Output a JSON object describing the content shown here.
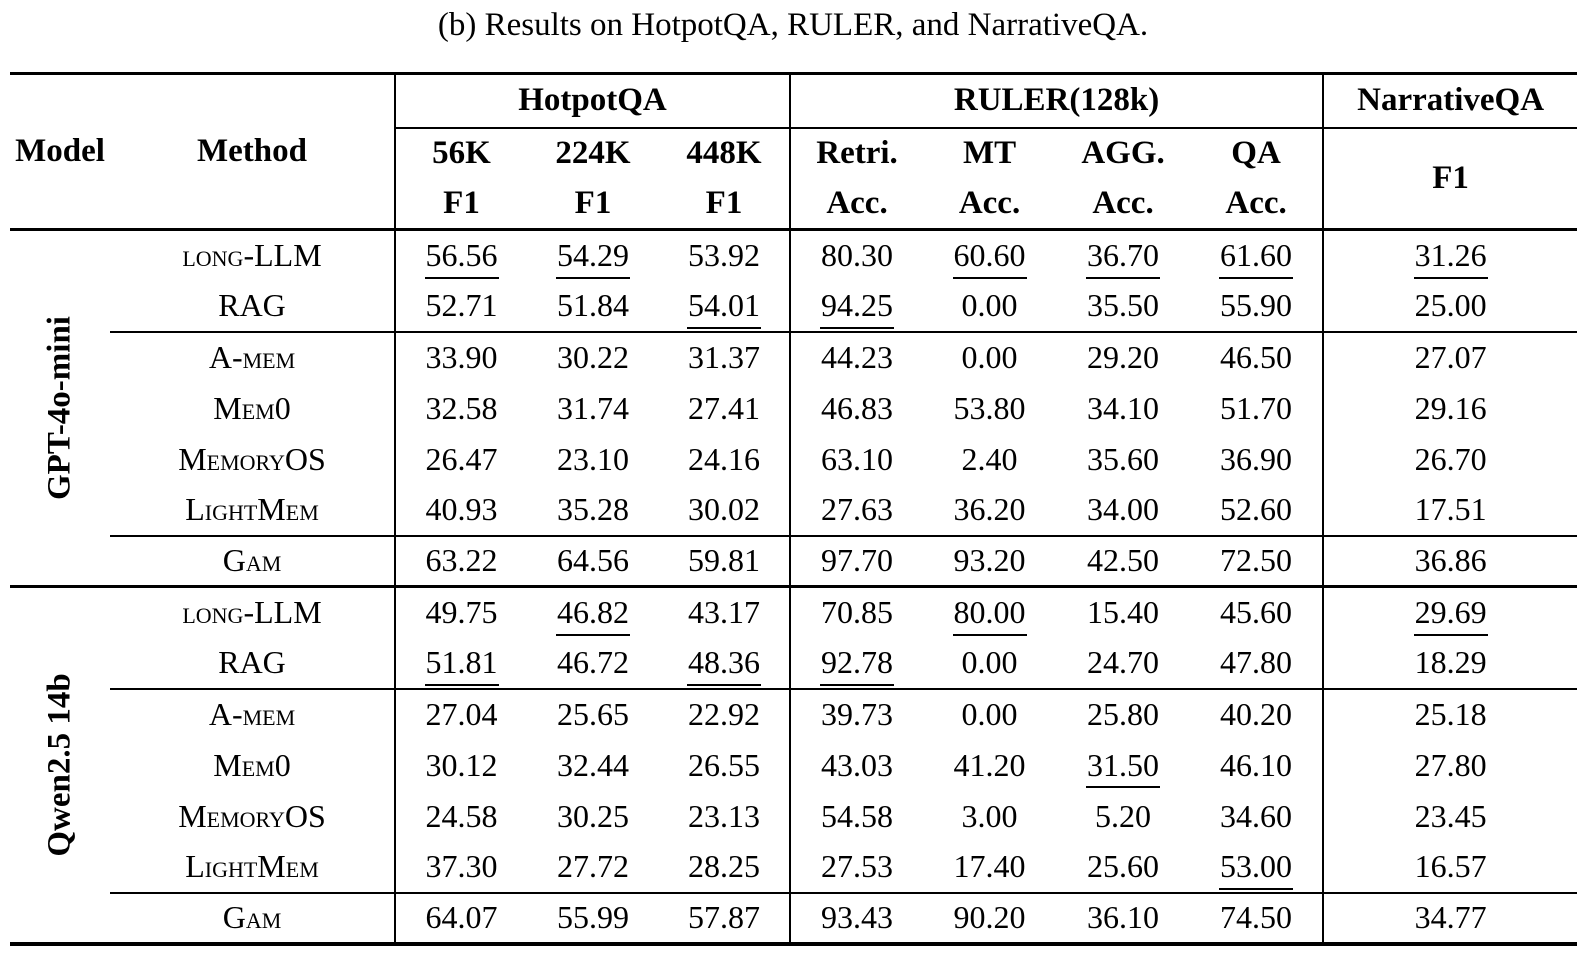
{
  "caption": "(b) Results on HotpotQA, RULER, and NarrativeQA.",
  "header": {
    "model": "Model",
    "method": "Method",
    "groups": [
      {
        "label": "HotpotQA"
      },
      {
        "label": "RULER(128k)"
      },
      {
        "label": "NarrativeQA"
      }
    ],
    "sub_top": [
      "56K",
      "224K",
      "448K",
      "Retri.",
      "MT",
      "AGG.",
      "QA"
    ],
    "sub_bottom": [
      "F1",
      "F1",
      "F1",
      "Acc.",
      "Acc.",
      "Acc.",
      "Acc."
    ],
    "narrative_metric": "F1"
  },
  "sections": [
    {
      "model": "GPT-4o-mini",
      "rows": [
        {
          "method": "long-LLM",
          "values": [
            "56.56",
            "54.29",
            "53.92",
            "80.30",
            "60.60",
            "36.70",
            "61.60",
            "31.26"
          ],
          "underline": [
            0,
            1,
            4,
            5,
            6,
            7
          ],
          "bold": false,
          "rule_above": false
        },
        {
          "method": "RAG",
          "values": [
            "52.71",
            "51.84",
            "54.01",
            "94.25",
            "0.00",
            "35.50",
            "55.90",
            "25.00"
          ],
          "underline": [
            2,
            3
          ],
          "bold": false,
          "rule_above": false
        },
        {
          "method": "A-mem",
          "values": [
            "33.90",
            "30.22",
            "31.37",
            "44.23",
            "0.00",
            "29.20",
            "46.50",
            "27.07"
          ],
          "underline": [],
          "bold": false,
          "rule_above": true
        },
        {
          "method": "Mem0",
          "values": [
            "32.58",
            "31.74",
            "27.41",
            "46.83",
            "53.80",
            "34.10",
            "51.70",
            "29.16"
          ],
          "underline": [],
          "bold": false,
          "rule_above": false
        },
        {
          "method": "MemoryOS",
          "values": [
            "26.47",
            "23.10",
            "24.16",
            "63.10",
            "2.40",
            "35.60",
            "36.90",
            "26.70"
          ],
          "underline": [],
          "bold": false,
          "rule_above": false
        },
        {
          "method": "LightMem",
          "values": [
            "40.93",
            "35.28",
            "30.02",
            "27.63",
            "36.20",
            "34.00",
            "52.60",
            "17.51"
          ],
          "underline": [],
          "bold": false,
          "rule_above": false
        },
        {
          "method": "Gam",
          "values": [
            "63.22",
            "64.56",
            "59.81",
            "97.70",
            "93.20",
            "42.50",
            "72.50",
            "36.86"
          ],
          "underline": [],
          "bold": true,
          "rule_above": true
        }
      ]
    },
    {
      "model": "Qwen2.5 14b",
      "rows": [
        {
          "method": "long-LLM",
          "values": [
            "49.75",
            "46.82",
            "43.17",
            "70.85",
            "80.00",
            "15.40",
            "45.60",
            "29.69"
          ],
          "underline": [
            1,
            4,
            7
          ],
          "bold": false,
          "rule_above": false
        },
        {
          "method": "RAG",
          "values": [
            "51.81",
            "46.72",
            "48.36",
            "92.78",
            "0.00",
            "24.70",
            "47.80",
            "18.29"
          ],
          "underline": [
            0,
            2,
            3
          ],
          "bold": false,
          "rule_above": false
        },
        {
          "method": "A-mem",
          "values": [
            "27.04",
            "25.65",
            "22.92",
            "39.73",
            "0.00",
            "25.80",
            "40.20",
            "25.18"
          ],
          "underline": [],
          "bold": false,
          "rule_above": true
        },
        {
          "method": "Mem0",
          "values": [
            "30.12",
            "32.44",
            "26.55",
            "43.03",
            "41.20",
            "31.50",
            "46.10",
            "27.80"
          ],
          "underline": [
            5
          ],
          "bold": false,
          "rule_above": false
        },
        {
          "method": "MemoryOS",
          "values": [
            "24.58",
            "30.25",
            "23.13",
            "54.58",
            "3.00",
            "5.20",
            "34.60",
            "23.45"
          ],
          "underline": [],
          "bold": false,
          "rule_above": false
        },
        {
          "method": "LightMem",
          "values": [
            "37.30",
            "27.72",
            "28.25",
            "27.53",
            "17.40",
            "25.60",
            "53.00",
            "16.57"
          ],
          "underline": [
            6
          ],
          "bold": false,
          "rule_above": false
        },
        {
          "method": "Gam",
          "values": [
            "64.07",
            "55.99",
            "57.87",
            "93.43",
            "90.20",
            "36.10",
            "74.50",
            "34.77"
          ],
          "underline": [],
          "bold": true,
          "rule_above": true
        }
      ]
    }
  ]
}
